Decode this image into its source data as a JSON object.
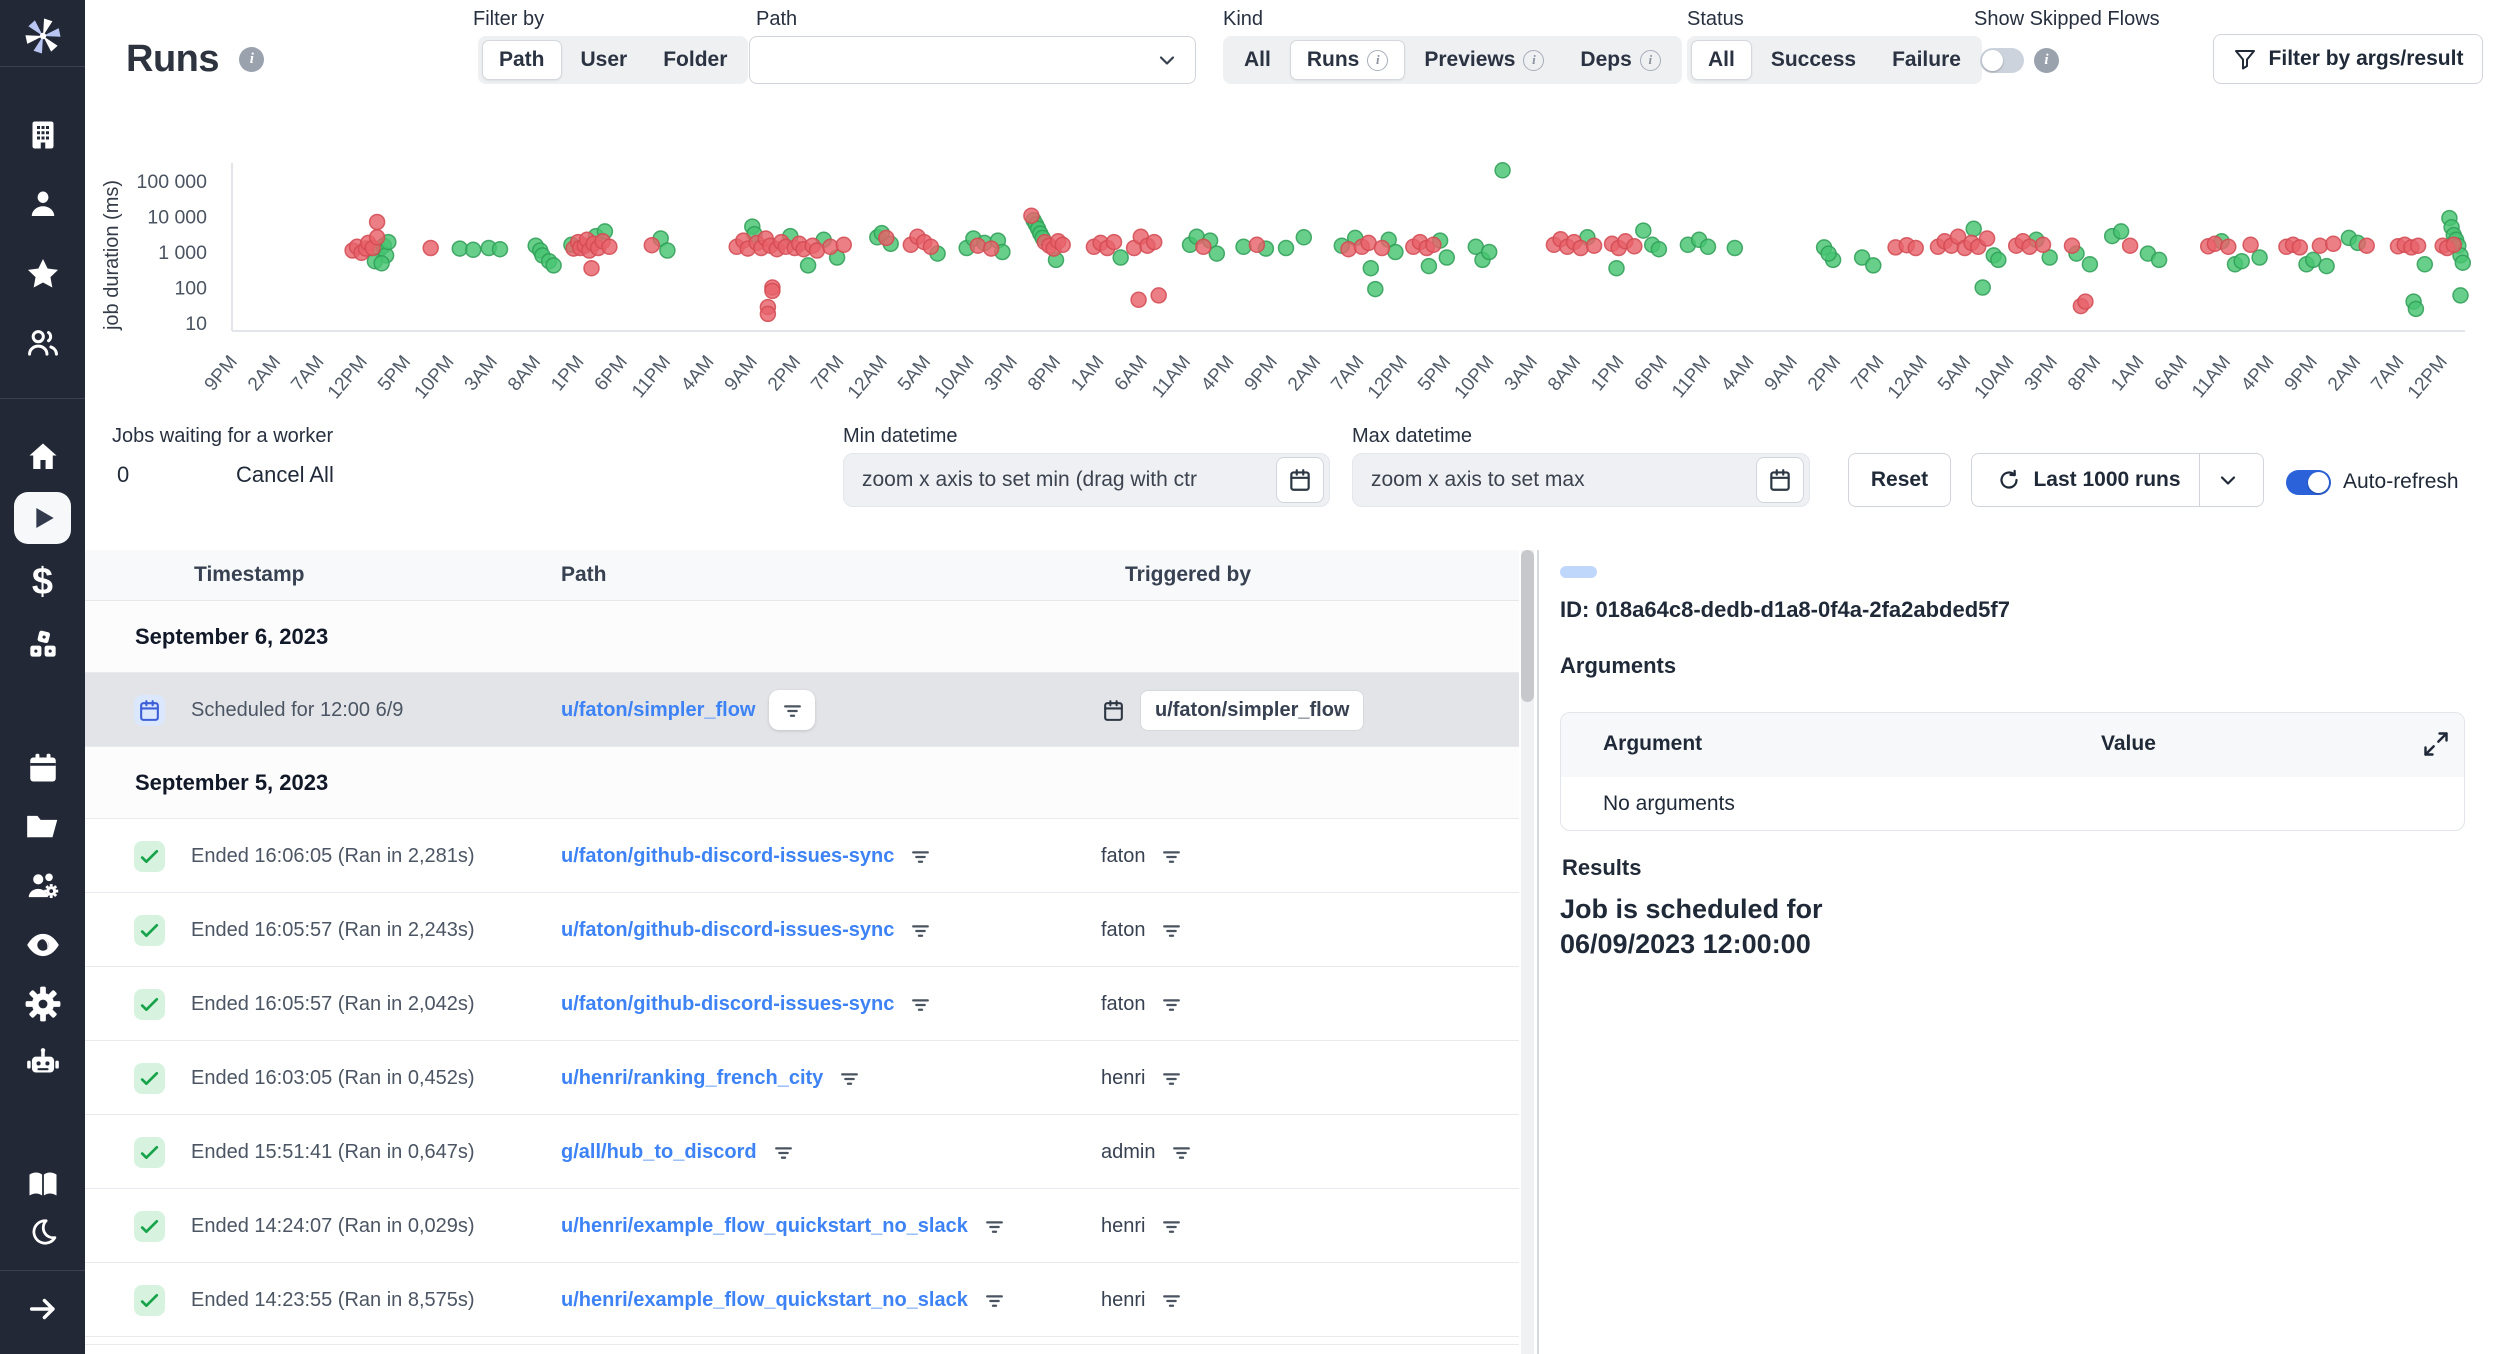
{
  "header": {
    "title": "Runs",
    "filter_by": {
      "label": "Filter by",
      "options": [
        "Path",
        "User",
        "Folder"
      ],
      "selected": "Path"
    },
    "path_select": {
      "label": "Path",
      "value": ""
    },
    "kind": {
      "label": "Kind",
      "options": [
        "All",
        "Runs",
        "Previews",
        "Deps"
      ],
      "selected": "Runs"
    },
    "status": {
      "label": "Status",
      "options": [
        "All",
        "Success",
        "Failure"
      ],
      "selected": "All"
    },
    "skipped": {
      "label": "Show Skipped Flows",
      "on": false
    },
    "filter_button": "Filter by args/result"
  },
  "controls": {
    "jobs_waiting_label": "Jobs waiting for a worker",
    "jobs_waiting_count": "0",
    "cancel_all": "Cancel All",
    "min_label": "Min datetime",
    "min_placeholder": "zoom x axis to set min (drag with ctr",
    "max_label": "Max datetime",
    "max_placeholder": "zoom x axis to set max",
    "reset": "Reset",
    "last_runs": "Last 1000 runs",
    "auto_refresh": "Auto-refresh"
  },
  "chart_data": {
    "type": "scatter",
    "ylabel": "job duration (ms)",
    "y_scale": "log",
    "ylim": [
      10,
      300000
    ],
    "grid": false,
    "y_ticks": [
      "100 000",
      "10 000",
      "1 000",
      "100",
      "10"
    ],
    "y_tick_values": [
      100000,
      10000,
      1000,
      100,
      10
    ],
    "x_ticks": [
      "9PM",
      "2AM",
      "7AM",
      "12PM",
      "5PM",
      "10PM",
      "3AM",
      "8AM",
      "1PM",
      "6PM",
      "11PM",
      "4AM",
      "9AM",
      "2PM",
      "7PM",
      "12AM",
      "5AM",
      "10AM",
      "3PM",
      "8PM",
      "1AM",
      "6AM",
      "11AM",
      "4PM",
      "9PM",
      "2AM",
      "7AM",
      "12PM",
      "5PM",
      "10PM",
      "3AM",
      "8AM",
      "1PM",
      "6PM",
      "11PM",
      "4AM",
      "9AM",
      "2PM",
      "7PM",
      "12AM",
      "5AM",
      "10AM",
      "3PM",
      "8PM",
      "1AM",
      "6AM",
      "11AM",
      "4PM",
      "9PM",
      "2AM",
      "7AM",
      "12PM"
    ],
    "series": [
      {
        "name": "success",
        "color": "#47c472",
        "stroke": "#2f9e57",
        "points": [
          [
            6.6,
            1200
          ],
          [
            6.8,
            1500
          ],
          [
            6.9,
            800
          ],
          [
            7.0,
            1900
          ],
          [
            6.4,
            550
          ],
          [
            6.7,
            480
          ],
          [
            10.2,
            1250
          ],
          [
            10.8,
            1150
          ],
          [
            11.5,
            1300
          ],
          [
            12.0,
            1200
          ],
          [
            13.6,
            1500
          ],
          [
            13.8,
            1100
          ],
          [
            13.9,
            800
          ],
          [
            14.2,
            550
          ],
          [
            14.4,
            420
          ],
          [
            15.2,
            1600
          ],
          [
            16.3,
            2800
          ],
          [
            16.7,
            3800
          ],
          [
            19.2,
            2400
          ],
          [
            19.5,
            1100
          ],
          [
            23.3,
            5200
          ],
          [
            23.4,
            3200
          ],
          [
            25.0,
            2800
          ],
          [
            25.8,
            420
          ],
          [
            26.5,
            2200
          ],
          [
            27.1,
            700
          ],
          [
            28.9,
            2600
          ],
          [
            29.1,
            3400
          ],
          [
            29.5,
            1700
          ],
          [
            31.6,
            900
          ],
          [
            32.9,
            1300
          ],
          [
            33.2,
            2400
          ],
          [
            33.7,
            1800
          ],
          [
            34.3,
            2100
          ],
          [
            34.5,
            1000
          ],
          [
            35.9,
            7800
          ],
          [
            36.0,
            6000
          ],
          [
            36.1,
            4500
          ],
          [
            36.2,
            3300
          ],
          [
            36.3,
            2500
          ],
          [
            36.9,
            600
          ],
          [
            39.8,
            700
          ],
          [
            42.9,
            1600
          ],
          [
            43.2,
            2700
          ],
          [
            43.8,
            2100
          ],
          [
            44.1,
            900
          ],
          [
            45.3,
            1400
          ],
          [
            46.3,
            1250
          ],
          [
            47.2,
            1300
          ],
          [
            48.0,
            2600
          ],
          [
            49.7,
            1500
          ],
          [
            50.3,
            2500
          ],
          [
            51.2,
            90
          ],
          [
            51.0,
            350
          ],
          [
            51.8,
            2200
          ],
          [
            52.1,
            1000
          ],
          [
            54.1,
            2100
          ],
          [
            54.4,
            700
          ],
          [
            53.6,
            400
          ],
          [
            55.7,
            1400
          ],
          [
            56.0,
            600
          ],
          [
            56.3,
            1000
          ],
          [
            56.9,
            200000
          ],
          [
            60.7,
            2600
          ],
          [
            63.2,
            4000
          ],
          [
            63.6,
            1600
          ],
          [
            62.0,
            350
          ],
          [
            63.9,
            1200
          ],
          [
            65.2,
            1600
          ],
          [
            65.7,
            2200
          ],
          [
            66.1,
            1400
          ],
          [
            67.3,
            1300
          ],
          [
            71.3,
            1350
          ],
          [
            71.7,
            600
          ],
          [
            71.5,
            900
          ],
          [
            73.0,
            700
          ],
          [
            73.5,
            420
          ],
          [
            78.0,
            4500
          ],
          [
            78.4,
            100
          ],
          [
            78.9,
            800
          ],
          [
            79.1,
            600
          ],
          [
            80.8,
            2200
          ],
          [
            81.4,
            700
          ],
          [
            83.2,
            450
          ],
          [
            82.6,
            900
          ],
          [
            84.2,
            2800
          ],
          [
            84.6,
            3800
          ],
          [
            85.8,
            900
          ],
          [
            86.3,
            600
          ],
          [
            89.1,
            2000
          ],
          [
            89.7,
            450
          ],
          [
            90.0,
            550
          ],
          [
            90.8,
            700
          ],
          [
            92.9,
            450
          ],
          [
            93.2,
            600
          ],
          [
            93.8,
            400
          ],
          [
            94.8,
            2500
          ],
          [
            95.2,
            1800
          ],
          [
            97.7,
            40
          ],
          [
            97.8,
            25
          ],
          [
            98.2,
            450
          ],
          [
            99.3,
            9000
          ],
          [
            99.4,
            5000
          ],
          [
            99.5,
            3000
          ],
          [
            99.6,
            2200
          ],
          [
            99.7,
            1500
          ],
          [
            99.8,
            800
          ],
          [
            99.9,
            500
          ],
          [
            99.8,
            60
          ]
        ]
      },
      {
        "name": "failure",
        "color": "#e8616a",
        "stroke": "#d24a52",
        "points": [
          [
            5.4,
            1100
          ],
          [
            5.6,
            1400
          ],
          [
            5.8,
            950
          ],
          [
            6.0,
            1250
          ],
          [
            6.1,
            1800
          ],
          [
            6.3,
            1300
          ],
          [
            6.5,
            7000
          ],
          [
            6.5,
            2600
          ],
          [
            8.9,
            1300
          ],
          [
            15.3,
            1250
          ],
          [
            15.5,
            1900
          ],
          [
            15.6,
            1300
          ],
          [
            15.8,
            1500
          ],
          [
            15.9,
            2200
          ],
          [
            16.0,
            1100
          ],
          [
            16.2,
            1700
          ],
          [
            16.4,
            1300
          ],
          [
            16.6,
            2000
          ],
          [
            16.9,
            1400
          ],
          [
            16.1,
            350
          ],
          [
            18.8,
            1550
          ],
          [
            22.6,
            1400
          ],
          [
            22.9,
            2100
          ],
          [
            23.1,
            1250
          ],
          [
            23.5,
            1800
          ],
          [
            23.7,
            1300
          ],
          [
            23.9,
            2400
          ],
          [
            24.1,
            1500
          ],
          [
            24.2,
            100
          ],
          [
            24.2,
            80
          ],
          [
            24.0,
            28
          ],
          [
            24.0,
            18
          ],
          [
            24.4,
            1200
          ],
          [
            24.6,
            1900
          ],
          [
            24.8,
            1400
          ],
          [
            25.2,
            1300
          ],
          [
            25.4,
            1700
          ],
          [
            25.6,
            1200
          ],
          [
            26.0,
            1500
          ],
          [
            26.2,
            1100
          ],
          [
            26.8,
            1400
          ],
          [
            27.4,
            1600
          ],
          [
            29.3,
            2500
          ],
          [
            30.4,
            1600
          ],
          [
            30.7,
            2700
          ],
          [
            31.0,
            1900
          ],
          [
            31.3,
            1400
          ],
          [
            33.4,
            1500
          ],
          [
            34.0,
            1250
          ],
          [
            35.8,
            10500
          ],
          [
            36.4,
            1900
          ],
          [
            36.6,
            1500
          ],
          [
            36.8,
            1250
          ],
          [
            37.0,
            2000
          ],
          [
            37.2,
            1600
          ],
          [
            38.6,
            1400
          ],
          [
            38.9,
            1800
          ],
          [
            39.2,
            1300
          ],
          [
            39.5,
            1900
          ],
          [
            40.4,
            1300
          ],
          [
            40.7,
            2700
          ],
          [
            41.0,
            1500
          ],
          [
            40.6,
            45
          ],
          [
            41.5,
            60
          ],
          [
            41.3,
            1900
          ],
          [
            43.5,
            1400
          ],
          [
            45.9,
            1600
          ],
          [
            50.0,
            1200
          ],
          [
            50.6,
            1400
          ],
          [
            50.9,
            1800
          ],
          [
            51.5,
            1300
          ],
          [
            52.9,
            1400
          ],
          [
            53.2,
            1900
          ],
          [
            53.5,
            1300
          ],
          [
            53.8,
            1600
          ],
          [
            59.2,
            1600
          ],
          [
            59.5,
            2300
          ],
          [
            59.8,
            1400
          ],
          [
            60.1,
            1900
          ],
          [
            60.4,
            1300
          ],
          [
            61.0,
            1500
          ],
          [
            61.8,
            1700
          ],
          [
            62.1,
            1300
          ],
          [
            62.4,
            2000
          ],
          [
            62.8,
            1450
          ],
          [
            74.5,
            1350
          ],
          [
            75.0,
            1550
          ],
          [
            75.4,
            1300
          ],
          [
            76.4,
            1400
          ],
          [
            76.7,
            2000
          ],
          [
            77.0,
            1500
          ],
          [
            77.3,
            2700
          ],
          [
            77.6,
            1300
          ],
          [
            77.9,
            1800
          ],
          [
            78.2,
            1400
          ],
          [
            78.6,
            2400
          ],
          [
            79.9,
            1500
          ],
          [
            80.2,
            2000
          ],
          [
            80.5,
            1400
          ],
          [
            81.1,
            1600
          ],
          [
            82.4,
            1500
          ],
          [
            82.8,
            30
          ],
          [
            83.0,
            40
          ],
          [
            85.0,
            1500
          ],
          [
            88.5,
            1450
          ],
          [
            88.8,
            1700
          ],
          [
            89.4,
            1400
          ],
          [
            90.4,
            1600
          ],
          [
            92.0,
            1400
          ],
          [
            92.3,
            1600
          ],
          [
            92.6,
            1350
          ],
          [
            93.5,
            1500
          ],
          [
            94.1,
            1700
          ],
          [
            95.6,
            1500
          ],
          [
            97.0,
            1450
          ],
          [
            97.3,
            1600
          ],
          [
            97.6,
            1350
          ],
          [
            97.9,
            1500
          ],
          [
            99.0,
            1500
          ],
          [
            99.2,
            1300
          ],
          [
            99.5,
            1600
          ]
        ]
      }
    ]
  },
  "table": {
    "columns": [
      "Timestamp",
      "Path",
      "Triggered by"
    ],
    "rows": [
      {
        "type": "group",
        "label": "September 6, 2023"
      },
      {
        "type": "run",
        "icon": "calendar",
        "selected": true,
        "timestamp": "Scheduled for 12:00 6/9",
        "path": "u/faton/simpler_flow",
        "trigger_badge": "u/faton/simpler_flow"
      },
      {
        "type": "group",
        "label": "September 5, 2023"
      },
      {
        "type": "run",
        "icon": "check",
        "timestamp": "Ended 16:06:05 (Ran in 2,281s)",
        "path": "u/faton/github-discord-issues-sync",
        "triggered_by": "faton"
      },
      {
        "type": "run",
        "icon": "check",
        "timestamp": "Ended 16:05:57 (Ran in 2,243s)",
        "path": "u/faton/github-discord-issues-sync",
        "triggered_by": "faton"
      },
      {
        "type": "run",
        "icon": "check",
        "timestamp": "Ended 16:05:57 (Ran in 2,042s)",
        "path": "u/faton/github-discord-issues-sync",
        "triggered_by": "faton"
      },
      {
        "type": "run",
        "icon": "check",
        "timestamp": "Ended 16:03:05 (Ran in 0,452s)",
        "path": "u/henri/ranking_french_city",
        "triggered_by": "henri"
      },
      {
        "type": "run",
        "icon": "check",
        "timestamp": "Ended 15:51:41 (Ran in 0,647s)",
        "path": "g/all/hub_to_discord",
        "triggered_by": "admin"
      },
      {
        "type": "run",
        "icon": "check",
        "timestamp": "Ended 14:24:07 (Ran in 0,029s)",
        "path": "u/henri/example_flow_quickstart_no_slack",
        "triggered_by": "henri"
      },
      {
        "type": "run",
        "icon": "check",
        "timestamp": "Ended 14:23:55 (Ran in 8,575s)",
        "path": "u/henri/example_flow_quickstart_no_slack",
        "triggered_by": "henri"
      }
    ]
  },
  "details": {
    "id_line": "ID: 018a64c8-dedb-d1a8-0f4a-2fa2abded5f7",
    "arguments_label": "Arguments",
    "argument_col": "Argument",
    "value_col": "Value",
    "no_arguments": "No arguments",
    "results_label": "Results",
    "result_line1": "Job is scheduled for",
    "result_line2": "06/09/2023 12:00:00"
  },
  "colors": {
    "sidebar_bg": "#222836",
    "accent_blue": "#3d83f6",
    "success_green": "#47c472",
    "failure_red": "#e8616a",
    "toggle_on": "#2b62d9"
  }
}
